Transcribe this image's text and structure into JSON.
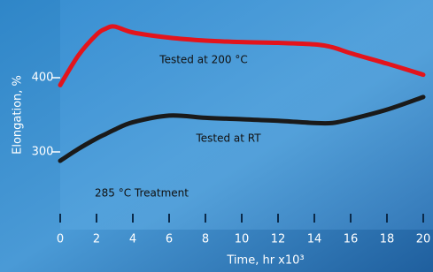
{
  "chart_data": {
    "type": "line",
    "x_label": "Time, hr x10³",
    "y_label": "Elongation, %",
    "x": [
      0,
      1,
      2,
      2.5,
      3,
      4,
      6,
      8,
      10,
      12,
      14,
      15,
      16,
      18,
      20
    ],
    "series": [
      {
        "name": "Tested at 200 °C",
        "color": "#e3141c",
        "values": [
          390,
          430,
          458,
          466,
          469,
          461,
          454,
          450,
          448,
          447,
          445,
          441,
          433,
          419,
          404
        ]
      },
      {
        "name": "Tested at RT",
        "color": "#1a1a1a",
        "values": [
          288,
          304,
          318,
          324,
          330,
          340,
          349,
          346,
          344,
          342,
          339,
          339,
          344,
          357,
          374
        ]
      }
    ],
    "annotation": "285 °C Treatment",
    "xlim": [
      0,
      20
    ],
    "xticks": [
      0,
      2,
      4,
      6,
      8,
      10,
      12,
      14,
      16,
      18,
      20
    ],
    "ylim": [
      200,
      500
    ],
    "yticks": [
      300,
      400
    ],
    "grid": false
  }
}
